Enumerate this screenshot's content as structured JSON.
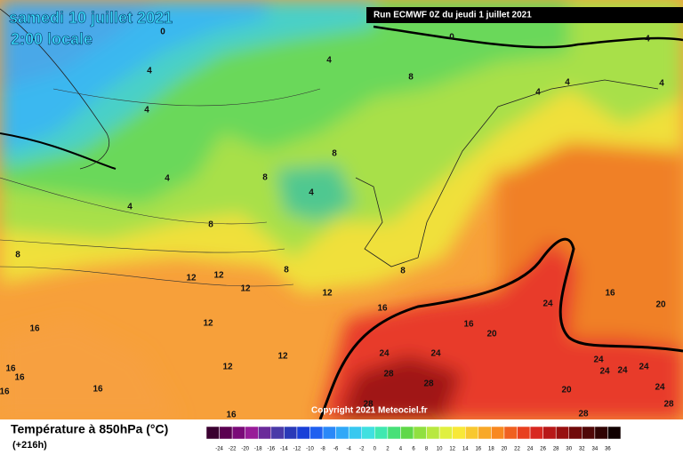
{
  "header": {
    "date": "samedi 10 juillet 2021",
    "time": "2:00 locale",
    "run": "Run ECMWF 0Z du jeudi 1 juillet 2021"
  },
  "copyright": "Copyright 2021 Meteociel.fr",
  "legend": {
    "title": "Température à 850hPa (°C)",
    "lead": "(+216h)",
    "labels": [
      "-24",
      "-22",
      "-20",
      "-18",
      "-16",
      "-14",
      "-12",
      "-10",
      "-8",
      "-6",
      "-4",
      "-2",
      "0",
      "2",
      "4",
      "6",
      "8",
      "10",
      "12",
      "14",
      "16",
      "18",
      "20",
      "22",
      "24",
      "26",
      "28",
      "30",
      "32",
      "34",
      "36"
    ],
    "colors": [
      "#3a0030",
      "#5a0050",
      "#7a0a78",
      "#981c98",
      "#6a2a9a",
      "#4a3aa8",
      "#2a3ab8",
      "#1a40d8",
      "#2060f0",
      "#2a88f8",
      "#30a8f8",
      "#38c8f0",
      "#40e0e0",
      "#40e8b0",
      "#48e078",
      "#60d848",
      "#90e040",
      "#b8e840",
      "#e0f040",
      "#f8e838",
      "#f8c830",
      "#f8a828",
      "#f88820",
      "#f06020",
      "#e84020",
      "#d82820",
      "#b81818",
      "#981010",
      "#700a0a",
      "#500808",
      "#300404",
      "#100000"
    ]
  },
  "contour_labels": [
    "0",
    "0",
    "4",
    "4",
    "4",
    "8",
    "4",
    "4",
    "4",
    "4",
    "8",
    "8",
    "4",
    "4",
    "4",
    "8",
    "8",
    "12",
    "12",
    "12",
    "8",
    "12",
    "8",
    "16",
    "24",
    "16",
    "20",
    "16",
    "12",
    "16",
    "20",
    "24",
    "24",
    "12",
    "12",
    "16",
    "16",
    "16",
    "16",
    "28",
    "28",
    "24",
    "24",
    "24",
    "24",
    "24",
    "20",
    "28",
    "16",
    "28",
    "28"
  ]
}
